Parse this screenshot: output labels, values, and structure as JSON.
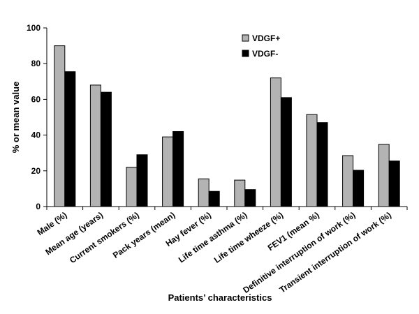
{
  "chart_data": {
    "type": "bar",
    "title": "",
    "xlabel": "Patients’ characteristics",
    "ylabel": "% or mean value",
    "ylim": [
      0,
      100
    ],
    "yticks": [
      0,
      20,
      40,
      60,
      80,
      100
    ],
    "grid": false,
    "legend_position": "top-right",
    "categories": [
      "Male (%)",
      "Mean age (years)",
      "Current smokers (%)",
      "Pack years (mean)",
      "Hay fever (%)",
      "Life time asthma (%)",
      "Life time wheeze (%)",
      "FEV1 (mean %)",
      "Definitive interruption of work (%)",
      "Transient interruption of work (%)"
    ],
    "series": [
      {
        "name": "VDGF+",
        "color": "#b3b3b3",
        "values": [
          90,
          68,
          22,
          39,
          15.5,
          14.8,
          72,
          51.5,
          28.5,
          34.8
        ]
      },
      {
        "name": "VDGF-",
        "color": "#000000",
        "values": [
          75.5,
          64,
          29,
          42,
          8.5,
          9.5,
          61,
          47,
          20.3,
          25.5
        ]
      }
    ]
  }
}
